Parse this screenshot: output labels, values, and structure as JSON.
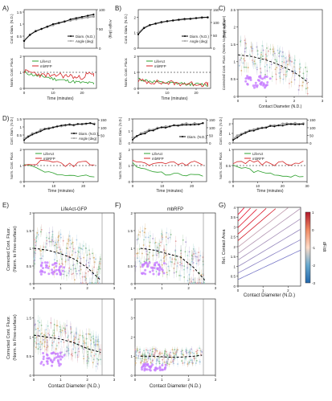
{
  "figure": {
    "panel_letters": [
      "A)",
      "B)",
      "C)",
      "D)",
      "E)",
      "F)",
      "G)"
    ],
    "diameter_legend": [
      "Diam. (N.D.)",
      "Angle (deg)"
    ],
    "diameter_legend_short": "Diam. (N.D.)",
    "fluor_legend": [
      "LifeAct",
      "mbRFP"
    ],
    "time_xlabel": "Time (minutes)",
    "contact_diameter_label": "Contact Diameter (N.D.)",
    "diameter_ylabel": "Cont. Diam. (N.D.)",
    "angle_ylabel": "Angle (deg)",
    "fluor_ylabel": "Norm. Cont. Fluor.",
    "c_ylabel": "Corrected Cont. Fluor. (Norm. to Free-surface)",
    "e_title": "LifeAct-GFP",
    "f_title": "mbRFP",
    "corrected_ylabel": "Corrected Cont. Fluor.",
    "norm_ylabel": "(Norm. to Free-surface)",
    "g_ylabel": "Rel. Contact Area",
    "g_colorbar_label": "dF/dt"
  },
  "colors": {
    "diameter": "#000000",
    "angle": "#9e9e9e",
    "lifeact": "#2ca02c",
    "mbrfp": "#d62728",
    "cluster": "#c77dff",
    "fit": "#000000"
  },
  "chart_data": [
    {
      "panel": "A",
      "type": "line",
      "xlabel": "Time (minutes)",
      "xticks": [
        0,
        10,
        20
      ],
      "xlim": [
        0,
        25
      ],
      "top": {
        "ylim": [
          0,
          1.6
        ],
        "yticks": [
          0.5,
          1.0,
          1.5
        ],
        "y2lim": [
          0,
          100
        ],
        "y2ticks": [
          0,
          50,
          100
        ],
        "series": [
          {
            "name": "Diam. (N.D.)",
            "x": [
              0,
              2,
              4,
              6,
              8,
              10,
              12,
              14,
              16,
              18,
              20,
              22,
              24
            ],
            "y": [
              0.3,
              0.55,
              0.7,
              0.8,
              0.9,
              1.0,
              1.05,
              1.1,
              1.2,
              1.25,
              1.3,
              1.35,
              1.4
            ]
          },
          {
            "name": "Angle (deg)",
            "x": [
              0,
              2,
              4,
              6,
              8,
              10,
              12,
              14,
              16,
              18,
              20,
              22,
              24
            ],
            "y2": [
              20,
              35,
              45,
              50,
              55,
              60,
              65,
              70,
              72,
              75,
              78,
              80,
              82
            ]
          }
        ]
      },
      "bottom": {
        "ylim": [
          0,
          2.0
        ],
        "yticks": [
          0,
          1,
          2
        ],
        "reference": 1.0,
        "series": [
          {
            "name": "LifeAct",
            "x": [
              0,
              2,
              4,
              6,
              8,
              10,
              12,
              14,
              16,
              18,
              20,
              22,
              24
            ],
            "y": [
              1.0,
              0.9,
              0.8,
              0.75,
              0.7,
              0.6,
              0.55,
              0.5,
              0.45,
              0.4,
              0.35,
              0.35,
              0.3
            ]
          },
          {
            "name": "mbRFP",
            "x": [
              0,
              2,
              4,
              6,
              8,
              10,
              12,
              14,
              16,
              18,
              20,
              22,
              24
            ],
            "y": [
              1.05,
              1.0,
              0.95,
              0.8,
              0.85,
              0.7,
              0.9,
              0.75,
              0.8,
              0.65,
              0.7,
              0.9,
              0.85
            ]
          }
        ]
      }
    },
    {
      "panel": "B",
      "type": "line",
      "xlabel": "Time (minutes)",
      "xticks": [
        0,
        10,
        20
      ],
      "xlim": [
        0,
        25
      ],
      "top": {
        "ylim": [
          0,
          2.5
        ],
        "yticks": [
          0,
          1,
          2
        ],
        "y2lim": [
          0,
          150
        ],
        "y2ticks": [
          0,
          50,
          100,
          150
        ],
        "series": [
          {
            "name": "Diam. (N.D.)",
            "x": [
              0,
              2,
              4,
              6,
              8,
              10,
              12,
              14,
              16,
              18,
              20,
              22,
              24
            ],
            "y": [
              0.9,
              1.3,
              1.5,
              1.6,
              1.7,
              1.75,
              1.8,
              1.85,
              1.9,
              1.9,
              1.95,
              2.0,
              2.0
            ]
          },
          {
            "name": "Angle (deg)",
            "x": [
              0,
              2,
              4,
              6,
              8,
              10,
              12,
              14,
              16,
              18,
              20,
              22,
              24
            ],
            "y2": [
              60,
              80,
              90,
              95,
              100,
              105,
              108,
              110,
              112,
              115,
              117,
              118,
              120
            ]
          }
        ]
      },
      "bottom": {
        "ylim": [
          0,
          2.0
        ],
        "yticks": [
          0,
          1,
          2
        ],
        "reference": 1.0,
        "series": [
          {
            "name": "LifeAct",
            "x": [
              0,
              2,
              4,
              6,
              8,
              10,
              12,
              14,
              16,
              18,
              20,
              22,
              24
            ],
            "y": [
              0.6,
              0.5,
              0.45,
              0.4,
              0.35,
              0.35,
              0.3,
              0.3,
              0.3,
              0.25,
              0.25,
              0.25,
              0.2
            ]
          },
          {
            "name": "mbRFP",
            "x": [
              0,
              2,
              4,
              6,
              8,
              10,
              12,
              14,
              16,
              18,
              20,
              22,
              24
            ],
            "y": [
              0.5,
              0.45,
              0.4,
              0.4,
              0.35,
              0.35,
              0.35,
              0.3,
              0.3,
              0.3,
              0.3,
              0.25,
              0.25
            ]
          }
        ]
      }
    },
    {
      "panel": "C",
      "type": "scatter",
      "xlabel": "Contact Diameter (N.D.)",
      "ylabel": "Corrected Cont. Fluor. (Norm. to Free-surface)",
      "xlim": [
        0,
        3
      ],
      "ylim": [
        0,
        2.5
      ],
      "xticks": [
        0,
        1,
        2,
        3
      ],
      "yticks": [
        0,
        0.5,
        1.0,
        1.5,
        2.0,
        2.5
      ],
      "fit": {
        "x": [
          0,
          0.5,
          1.0,
          1.5,
          2.0,
          2.5
        ],
        "y": [
          1.2,
          1.15,
          1.05,
          0.9,
          0.7,
          0.4
        ]
      }
    },
    {
      "panel": "D",
      "type": "line",
      "xlabel": "Time (minutes)",
      "subplots": [
        {
          "xticks": [
            0,
            10,
            20
          ],
          "xlim": [
            0,
            25
          ],
          "top_ylim": [
            0,
            1.5
          ],
          "top_yticks": [
            0.5,
            1.0,
            1.5
          ],
          "y2_ticks": [
            50,
            100,
            150
          ],
          "bottom_ylim": [
            0,
            2.0
          ],
          "bottom_yticks": [
            0,
            1,
            2
          ]
        },
        {
          "xticks": [
            0,
            10,
            20
          ],
          "xlim": [
            0,
            25
          ],
          "top_ylim": [
            0,
            2.0
          ],
          "top_yticks": [
            0,
            1,
            2
          ],
          "y2_ticks": [
            0,
            50,
            100,
            150
          ],
          "bottom_ylim": [
            0,
            2.0
          ],
          "bottom_yticks": [
            0,
            1,
            2
          ]
        },
        {
          "xticks": [
            0,
            10,
            20,
            30
          ],
          "xlim": [
            0,
            30
          ],
          "top_ylim": [
            0,
            2.5
          ],
          "top_yticks": [
            0,
            1,
            2
          ],
          "y2_ticks": [
            0,
            50,
            100,
            150
          ],
          "bottom_ylim": [
            0,
            1.0
          ],
          "bottom_yticks": [
            0,
            0.5,
            1.0
          ]
        }
      ]
    },
    {
      "panel": "E",
      "type": "scatter",
      "title": "LifeAct-GFP",
      "xlabel": "Contact Diameter (N.D.)",
      "ylabel": "Corrected Cont. Fluor.",
      "xlim": [
        0,
        3
      ],
      "xticks": [
        0,
        1,
        2,
        3
      ],
      "top": {
        "ylim": [
          0,
          2.0
        ],
        "yticks": [
          0,
          0.5,
          1.0,
          1.5,
          2.0
        ],
        "fit": {
          "x": [
            0,
            0.5,
            1.0,
            1.5,
            2.0,
            2.5
          ],
          "y": [
            1.0,
            0.95,
            0.85,
            0.7,
            0.45,
            0.1
          ]
        }
      },
      "bottom": {
        "ylim": [
          0,
          2.0
        ],
        "yticks": [
          0,
          0.5,
          1.0,
          1.5,
          2.0
        ],
        "fit": {
          "x": [
            0,
            0.5,
            1.0,
            1.5,
            2.0,
            2.5
          ],
          "y": [
            1.05,
            1.0,
            0.95,
            0.85,
            0.7,
            0.6
          ]
        }
      }
    },
    {
      "panel": "F",
      "type": "scatter",
      "title": "mbRFP",
      "xlabel": "Contact Diameter (N.D.)",
      "xlim": [
        0,
        3
      ],
      "xticks": [
        0,
        1,
        2,
        3
      ],
      "top": {
        "ylim": [
          0,
          2.0
        ],
        "yticks": [
          0,
          0.5,
          1.0,
          1.5,
          2.0
        ],
        "fit": {
          "x": [
            0.2,
            0.7,
            1.2,
            1.7,
            2.2,
            2.6
          ],
          "y": [
            1.0,
            0.95,
            0.85,
            0.75,
            0.45,
            0.1
          ]
        }
      },
      "bottom": {
        "ylim": [
          0,
          4
        ],
        "yticks": [
          0,
          1,
          2,
          3,
          4
        ],
        "fit": {
          "x": [
            0.2,
            0.7,
            1.2,
            1.7,
            2.2,
            2.5
          ],
          "y": [
            1.0,
            1.0,
            0.95,
            0.95,
            1.0,
            1.05
          ]
        }
      }
    },
    {
      "panel": "G",
      "type": "heatmap",
      "xlabel": "Contact Diameter (N.D.)",
      "ylabel": "Rel. Contact Area",
      "colorbar_label": "dF/dt",
      "xlim": [
        0,
        2.5
      ],
      "ylim": [
        0,
        4
      ],
      "xticks": [
        0,
        1,
        2
      ],
      "yticks": [
        0.0,
        0.5,
        1.0,
        1.5,
        2.0,
        2.5,
        3.0,
        3.5,
        4.0
      ],
      "colorbar_ticks": [
        1,
        0,
        -1,
        -2,
        -3
      ],
      "colorbar_range": [
        -3,
        1
      ]
    }
  ]
}
